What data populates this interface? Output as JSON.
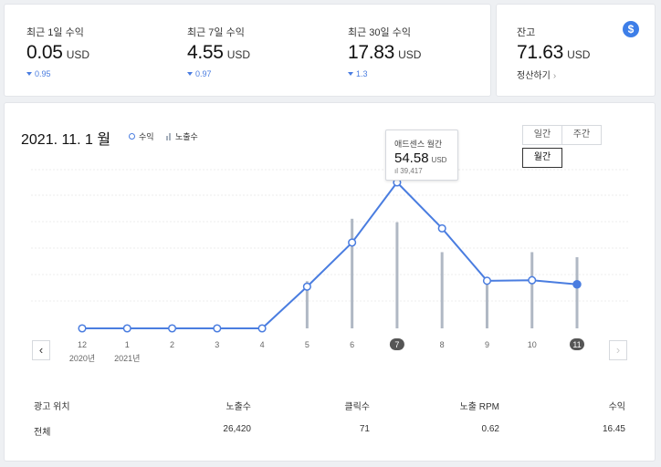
{
  "summary": [
    {
      "label": "최근 1일 수익",
      "value": "0.05",
      "unit": "USD",
      "delta": "0.95"
    },
    {
      "label": "최근 7일 수익",
      "value": "4.55",
      "unit": "USD",
      "delta": "0.97"
    },
    {
      "label": "최근 30일 수익",
      "value": "17.83",
      "unit": "USD",
      "delta": "1.3"
    }
  ],
  "balance": {
    "label": "잔고",
    "value": "71.63",
    "unit": "USD",
    "settle_label": "정산하기",
    "icon": "$"
  },
  "chart_header": {
    "period": "2021. 11. 1 월",
    "legend_revenue": "수익",
    "legend_impressions": "노출수",
    "tabs": [
      "일간",
      "주간",
      "월간"
    ],
    "active_tab": "월간"
  },
  "tooltip": {
    "title": "애드센스 월간",
    "value": "54.58",
    "unit": "USD",
    "impressions": "39,417"
  },
  "chart_data": {
    "type": "line",
    "categories": [
      "12",
      "1",
      "2",
      "3",
      "4",
      "5",
      "6",
      "7",
      "8",
      "9",
      "10",
      "11"
    ],
    "year_labels": {
      "0": "2020년",
      "1": "2021년"
    },
    "highlighted": [
      "7",
      "11"
    ],
    "series": [
      {
        "name": "수익",
        "type": "line",
        "color": "#4a7de0",
        "values": [
          0,
          0,
          0,
          0,
          0,
          15.6,
          32.1,
          54.58,
          37.4,
          17.8,
          18.0,
          16.45
        ]
      },
      {
        "name": "노출수",
        "type": "bar",
        "color": "#b0b8c4",
        "values": [
          0,
          0,
          0,
          0,
          0,
          17500,
          40700,
          39417,
          28300,
          18600,
          28300,
          26420
        ]
      }
    ],
    "grid": true
  },
  "table": {
    "headers": [
      "광고 위치",
      "노출수",
      "클릭수",
      "노출 RPM",
      "수익"
    ],
    "rows": [
      [
        "전체",
        "26,420",
        "71",
        "0.62",
        "16.45"
      ]
    ]
  }
}
